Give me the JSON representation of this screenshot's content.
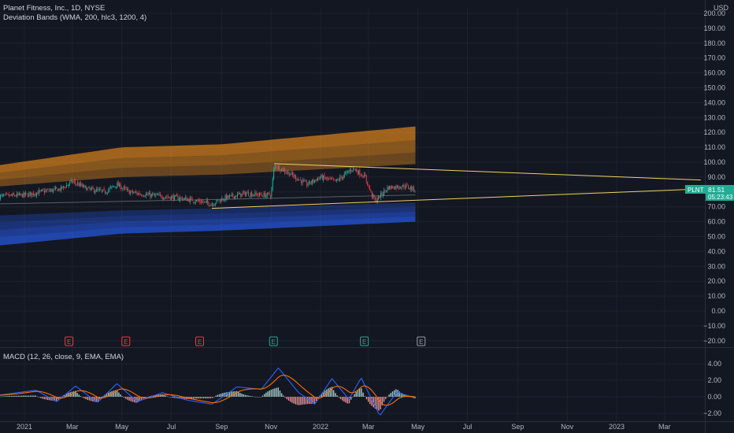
{
  "header": {
    "title": "Planet Fitness, Inc., 1D, NYSE",
    "indicator": "Deviation Bands (WMA, 200, hlc3, 1200, 4)",
    "macd": "MACD (12, 26, close, 9, EMA, EMA)"
  },
  "price_axis": {
    "currency": "USD",
    "ticks": [
      "200.00",
      "190.00",
      "180.00",
      "170.00",
      "160.00",
      "150.00",
      "140.00",
      "130.00",
      "120.00",
      "110.00",
      "100.00",
      "90.00",
      "80.00",
      "70.00",
      "60.00",
      "50.00",
      "40.00",
      "30.00",
      "20.00",
      "10.00",
      "0.00",
      "−10.00",
      "−20.00"
    ],
    "last_price_label": {
      "ticker": "PLNT",
      "price": "81.51",
      "countdown": "05:23:43"
    }
  },
  "macd_axis": {
    "ticks": [
      "4.00",
      "2.00",
      "0.00",
      "−2.00"
    ]
  },
  "time_axis": {
    "ticks": [
      "2021",
      "Mar",
      "May",
      "Jul",
      "Sep",
      "Nov",
      "2022",
      "Mar",
      "May",
      "Jul",
      "Sep",
      "Nov",
      "2023",
      "Mar"
    ]
  },
  "earnings_markers": [
    {
      "label": "E",
      "color": "#f23645"
    },
    {
      "label": "E",
      "color": "#f23645"
    },
    {
      "label": "E",
      "color": "#f23645"
    },
    {
      "label": "E",
      "color": "#22ab94"
    },
    {
      "label": "E",
      "color": "#22ab94"
    },
    {
      "label": "E",
      "color": "#9598a1"
    }
  ],
  "colors": {
    "background": "#131722",
    "up": "#22ab94",
    "down": "#f23645",
    "upper_band": "#f7931a",
    "lower_band": "#2962ff",
    "trendline": "#f0d264",
    "macd_line": "#2962ff",
    "signal_line": "#ff6d00"
  },
  "chart_data": {
    "type": "candlestick",
    "x_range": [
      "2020-12",
      "2023-04"
    ],
    "ylim": [
      -20,
      200
    ],
    "price_path": [
      {
        "date": "2020-12-01",
        "close": 77
      },
      {
        "date": "2021-01-04",
        "close": 78
      },
      {
        "date": "2021-01-20",
        "close": 80
      },
      {
        "date": "2021-02-15",
        "close": 82
      },
      {
        "date": "2021-03-01",
        "close": 87
      },
      {
        "date": "2021-03-20",
        "close": 82
      },
      {
        "date": "2021-04-10",
        "close": 80
      },
      {
        "date": "2021-04-25",
        "close": 85
      },
      {
        "date": "2021-05-10",
        "close": 80
      },
      {
        "date": "2021-06-01",
        "close": 78
      },
      {
        "date": "2021-06-20",
        "close": 77
      },
      {
        "date": "2021-07-10",
        "close": 76
      },
      {
        "date": "2021-08-01",
        "close": 74
      },
      {
        "date": "2021-08-20",
        "close": 72
      },
      {
        "date": "2021-09-05",
        "close": 76
      },
      {
        "date": "2021-10-01",
        "close": 79
      },
      {
        "date": "2021-10-20",
        "close": 78
      },
      {
        "date": "2021-11-01",
        "close": 78
      },
      {
        "date": "2021-11-05",
        "close": 98
      },
      {
        "date": "2021-11-25",
        "close": 92
      },
      {
        "date": "2021-12-15",
        "close": 85
      },
      {
        "date": "2022-01-01",
        "close": 90
      },
      {
        "date": "2022-01-20",
        "close": 87
      },
      {
        "date": "2022-02-10",
        "close": 96
      },
      {
        "date": "2022-02-25",
        "close": 90
      },
      {
        "date": "2022-03-05",
        "close": 78
      },
      {
        "date": "2022-03-10",
        "close": 74
      },
      {
        "date": "2022-03-25",
        "close": 83
      },
      {
        "date": "2022-04-15",
        "close": 84
      },
      {
        "date": "2022-04-28",
        "close": 81.51
      }
    ],
    "deviation_bands": {
      "wma": [
        {
          "date": "2020-12-01",
          "value": 72
        },
        {
          "date": "2021-09-01",
          "value": 75
        },
        {
          "date": "2022-04-28",
          "value": 78
        }
      ],
      "upper_outer": [
        {
          "date": "2020-12-01",
          "value": 98
        },
        {
          "date": "2021-05-01",
          "value": 110
        },
        {
          "date": "2021-09-01",
          "value": 112
        },
        {
          "date": "2022-04-28",
          "value": 124
        }
      ],
      "lower_outer": [
        {
          "date": "2020-12-01",
          "value": 44
        },
        {
          "date": "2021-05-01",
          "value": 52
        },
        {
          "date": "2021-09-01",
          "value": 54
        },
        {
          "date": "2022-04-28",
          "value": 60
        }
      ]
    },
    "trendlines": [
      {
        "from": {
          "date": "2021-11-05",
          "value": 99
        },
        "to": {
          "date": "2023-04-15",
          "value": 88
        }
      },
      {
        "from": {
          "date": "2021-08-20",
          "value": 69
        },
        "to": {
          "date": "2023-04-15",
          "value": 82
        }
      }
    ],
    "macd": {
      "ylim": [
        -2.8,
        5
      ],
      "path": [
        {
          "date": "2020-12-01",
          "value": 0.2
        },
        {
          "date": "2021-01-15",
          "value": 0.8
        },
        {
          "date": "2021-02-10",
          "value": -0.6
        },
        {
          "date": "2021-03-05",
          "value": 1.3
        },
        {
          "date": "2021-04-01",
          "value": -0.7
        },
        {
          "date": "2021-04-25",
          "value": 1.6
        },
        {
          "date": "2021-05-20",
          "value": -0.6
        },
        {
          "date": "2021-06-20",
          "value": 0.5
        },
        {
          "date": "2021-07-20",
          "value": -0.4
        },
        {
          "date": "2021-08-20",
          "value": -0.9
        },
        {
          "date": "2021-09-20",
          "value": 1.2
        },
        {
          "date": "2021-10-20",
          "value": 0.9
        },
        {
          "date": "2021-11-10",
          "value": 3.5
        },
        {
          "date": "2021-12-05",
          "value": 0.5
        },
        {
          "date": "2021-12-25",
          "value": -0.9
        },
        {
          "date": "2022-01-15",
          "value": 2.2
        },
        {
          "date": "2022-02-05",
          "value": -0.3
        },
        {
          "date": "2022-02-20",
          "value": 2.3
        },
        {
          "date": "2022-03-15",
          "value": -2.3
        },
        {
          "date": "2022-04-05",
          "value": 0.6
        },
        {
          "date": "2022-04-28",
          "value": -0.2
        }
      ]
    }
  }
}
